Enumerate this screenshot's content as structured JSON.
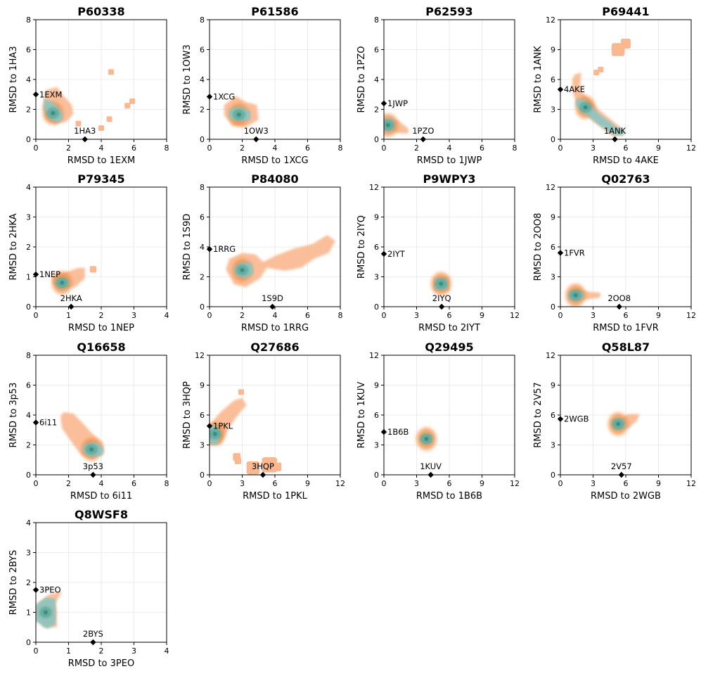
{
  "palette": {
    "orange_outer": "#f9b88f",
    "orange_mid": "#f4a26c",
    "orange_core": "#ef8a3f",
    "teal_outer": "#8ec5c0",
    "teal_mid": "#5fa99c",
    "teal_core": "#3a8f80",
    "reference_marker": "#000000",
    "grid": "#e6e6e6"
  },
  "chart_data": [
    {
      "type": "scatter",
      "title": "P60338",
      "xlabel": "RMSD to 1EXM",
      "ylabel": "RMSD to 1HA3",
      "xlim": [
        0,
        8
      ],
      "ylim": [
        0,
        8
      ],
      "ticks": [
        "0",
        "2",
        "4",
        "6",
        "8"
      ],
      "reference_points": [
        {
          "label": "1EXM",
          "x": 0.0,
          "y": 3.0
        },
        {
          "label": "1HA3",
          "x": 3.0,
          "y": 0.0
        }
      ],
      "orange_region": [
        [
          0.6,
          3.3
        ],
        [
          1.3,
          3.5
        ],
        [
          1.7,
          2.9
        ],
        [
          2.2,
          2.3
        ],
        [
          2.3,
          1.7
        ],
        [
          1.9,
          1.2
        ],
        [
          1.2,
          1.0
        ],
        [
          0.6,
          1.4
        ],
        [
          0.4,
          2.2
        ]
      ],
      "orange_blobs": [
        {
          "x": 4.6,
          "y": 4.5,
          "r": 0.15
        },
        {
          "x": 5.9,
          "y": 2.55,
          "r": 0.15
        },
        {
          "x": 5.6,
          "y": 2.25,
          "r": 0.15
        },
        {
          "x": 4.5,
          "y": 1.35,
          "r": 0.15
        },
        {
          "x": 4.0,
          "y": 0.75,
          "r": 0.15
        },
        {
          "x": 2.6,
          "y": 1.05,
          "r": 0.15
        }
      ],
      "teal_region": [
        [
          0.5,
          2.7
        ],
        [
          1.0,
          2.5
        ],
        [
          1.5,
          2.0
        ],
        [
          1.7,
          1.4
        ],
        [
          1.3,
          1.1
        ],
        [
          0.8,
          1.4
        ],
        [
          0.5,
          2.0
        ]
      ],
      "density_peak": {
        "x": 1.05,
        "y": 1.75
      }
    },
    {
      "type": "scatter",
      "title": "P61586",
      "xlabel": "RMSD to 1XCG",
      "ylabel": "RMSD to 1OW3",
      "xlim": [
        0,
        8
      ],
      "ylim": [
        0,
        8
      ],
      "ticks": [
        "0",
        "2",
        "4",
        "6",
        "8"
      ],
      "reference_points": [
        {
          "label": "1XCG",
          "x": 0.0,
          "y": 2.85
        },
        {
          "label": "1OW3",
          "x": 2.85,
          "y": 0.0
        }
      ],
      "orange_region": [
        [
          0.9,
          2.3
        ],
        [
          1.6,
          2.9
        ],
        [
          2.2,
          2.5
        ],
        [
          2.9,
          2.3
        ],
        [
          3.0,
          1.3
        ],
        [
          2.2,
          0.8
        ],
        [
          1.4,
          0.9
        ],
        [
          0.9,
          1.6
        ]
      ],
      "orange_blobs": [],
      "teal_region": [
        [
          1.2,
          2.0
        ],
        [
          1.8,
          2.2
        ],
        [
          2.5,
          1.9
        ],
        [
          2.5,
          1.3
        ],
        [
          1.8,
          1.2
        ],
        [
          1.2,
          1.4
        ]
      ],
      "density_peak": {
        "x": 1.8,
        "y": 1.65
      }
    },
    {
      "type": "scatter",
      "title": "P62593",
      "xlabel": "RMSD to 1JWP",
      "ylabel": "RMSD to 1PZO",
      "xlim": [
        0,
        8
      ],
      "ylim": [
        0,
        8
      ],
      "ticks": [
        "0",
        "2",
        "4",
        "6",
        "8"
      ],
      "reference_points": [
        {
          "label": "1JWP",
          "x": 0.0,
          "y": 2.4
        },
        {
          "label": "1PZO",
          "x": 2.4,
          "y": 0.0
        }
      ],
      "orange_region": [
        [
          0.3,
          1.3
        ],
        [
          0.8,
          1.3
        ],
        [
          1.3,
          0.9
        ],
        [
          1.5,
          0.7
        ],
        [
          1.5,
          0.4
        ],
        [
          0.8,
          0.4
        ],
        [
          0.2,
          0.7
        ]
      ],
      "orange_blobs": [],
      "teal_region": [
        [
          -0.1,
          1.3
        ],
        [
          0.5,
          1.4
        ],
        [
          0.7,
          0.8
        ],
        [
          0.3,
          0.5
        ],
        [
          -0.1,
          0.8
        ]
      ],
      "density_peak": {
        "x": 0.25,
        "y": 0.95
      }
    },
    {
      "type": "scatter",
      "title": "P69441",
      "xlabel": "RMSD to 4AKE",
      "ylabel": "RMSD to 1ANK",
      "xlim": [
        0,
        12
      ],
      "ylim": [
        0,
        12
      ],
      "ticks": [
        "0",
        "3",
        "6",
        "9",
        "12"
      ],
      "reference_points": [
        {
          "label": "4AKE",
          "x": 0.0,
          "y": 5.0
        },
        {
          "label": "1ANK",
          "x": 5.0,
          "y": 0.0
        }
      ],
      "orange_region": [
        [
          1.1,
          6.0
        ],
        [
          1.3,
          6.5
        ],
        [
          1.9,
          6.7
        ],
        [
          1.8,
          5.0
        ],
        [
          3.5,
          3.0
        ],
        [
          5.5,
          1.2
        ],
        [
          5.8,
          0.4
        ],
        [
          4.8,
          0.3
        ],
        [
          3.0,
          1.8
        ],
        [
          1.5,
          3.6
        ],
        [
          1.1,
          4.8
        ]
      ],
      "orange_blobs": [
        {
          "x": 5.3,
          "y": 9.0,
          "r": 0.6
        },
        {
          "x": 6.0,
          "y": 9.6,
          "r": 0.45
        },
        {
          "x": 3.7,
          "y": 7.0,
          "r": 0.25
        },
        {
          "x": 3.3,
          "y": 6.7,
          "r": 0.2
        }
      ],
      "teal_region": [
        [
          1.4,
          4.0
        ],
        [
          2.2,
          4.0
        ],
        [
          3.5,
          2.6
        ],
        [
          5.2,
          1.2
        ],
        [
          5.9,
          0.9
        ],
        [
          5.8,
          0.4
        ],
        [
          4.9,
          0.4
        ],
        [
          3.1,
          1.8
        ],
        [
          1.4,
          3.4
        ]
      ],
      "density_peak": {
        "x": 2.3,
        "y": 3.2
      }
    },
    {
      "type": "scatter",
      "title": "P79345",
      "xlabel": "RMSD to 1NEP",
      "ylabel": "RMSD to 2HKA",
      "xlim": [
        0,
        4
      ],
      "ylim": [
        0,
        4
      ],
      "ticks": [
        "0",
        "1",
        "2",
        "3",
        "4"
      ],
      "reference_points": [
        {
          "label": "1NEP",
          "x": 0.0,
          "y": 1.08
        },
        {
          "label": "2HKA",
          "x": 1.08,
          "y": 0.0
        }
      ],
      "orange_region": [
        [
          0.5,
          1.0
        ],
        [
          0.9,
          1.15
        ],
        [
          1.3,
          1.3
        ],
        [
          1.5,
          1.3
        ],
        [
          1.5,
          0.95
        ],
        [
          1.2,
          0.65
        ],
        [
          0.7,
          0.6
        ],
        [
          0.5,
          0.8
        ]
      ],
      "orange_blobs": [
        {
          "x": 1.75,
          "y": 1.25,
          "r": 0.1
        }
      ],
      "teal_region": [
        [
          0.6,
          0.9
        ],
        [
          0.9,
          0.95
        ],
        [
          1.05,
          0.8
        ],
        [
          0.9,
          0.65
        ],
        [
          0.65,
          0.72
        ]
      ],
      "density_peak": {
        "x": 0.8,
        "y": 0.8
      }
    },
    {
      "type": "scatter",
      "title": "P84080",
      "xlabel": "RMSD to 1RRG",
      "ylabel": "RMSD to 1S9D",
      "xlim": [
        0,
        8
      ],
      "ylim": [
        0,
        8
      ],
      "ticks": [
        "0",
        "2",
        "4",
        "6",
        "8"
      ],
      "reference_points": [
        {
          "label": "1RRG",
          "x": 0.0,
          "y": 3.85
        },
        {
          "label": "1S9D",
          "x": 3.85,
          "y": 0.0
        }
      ],
      "orange_region": [
        [
          1.0,
          2.5
        ],
        [
          1.2,
          3.2
        ],
        [
          2.0,
          3.6
        ],
        [
          2.8,
          3.5
        ],
        [
          3.3,
          3.0
        ],
        [
          4.0,
          3.4
        ],
        [
          5.2,
          3.9
        ],
        [
          6.3,
          4.2
        ],
        [
          7.2,
          4.8
        ],
        [
          7.7,
          4.4
        ],
        [
          7.3,
          3.6
        ],
        [
          6.4,
          3.2
        ],
        [
          5.6,
          2.6
        ],
        [
          4.6,
          2.4
        ],
        [
          3.5,
          2.6
        ],
        [
          3.1,
          1.9
        ],
        [
          2.2,
          1.3
        ],
        [
          1.5,
          1.5
        ]
      ],
      "orange_blobs": [],
      "teal_region": [
        [
          1.5,
          2.6
        ],
        [
          2.0,
          3.0
        ],
        [
          2.6,
          2.9
        ],
        [
          2.7,
          2.2
        ],
        [
          2.2,
          1.9
        ],
        [
          1.6,
          2.1
        ]
      ],
      "density_peak": {
        "x": 2.0,
        "y": 2.45
      }
    },
    {
      "type": "scatter",
      "title": "P9WPY3",
      "xlabel": "RMSD to 2IYT",
      "ylabel": "RMSD to 2IYQ",
      "xlim": [
        0,
        12
      ],
      "ylim": [
        0,
        12
      ],
      "ticks": [
        "0",
        "3",
        "6",
        "9",
        "12"
      ],
      "reference_points": [
        {
          "label": "2IYT",
          "x": 0.0,
          "y": 5.3
        },
        {
          "label": "2IYQ",
          "x": 5.3,
          "y": 0.0
        }
      ],
      "orange_region": [
        [
          4.6,
          2.9
        ],
        [
          5.9,
          3.0
        ],
        [
          6.0,
          1.6
        ],
        [
          4.6,
          1.6
        ]
      ],
      "orange_blobs": [],
      "teal_region": [
        [
          4.7,
          2.8
        ],
        [
          5.8,
          2.8
        ],
        [
          5.8,
          1.7
        ],
        [
          4.7,
          1.7
        ]
      ],
      "density_peak": {
        "x": 5.25,
        "y": 2.3
      }
    },
    {
      "type": "scatter",
      "title": "Q02763",
      "xlabel": "RMSD to 1FVR",
      "ylabel": "RMSD to 2OO8",
      "xlim": [
        0,
        12
      ],
      "ylim": [
        0,
        12
      ],
      "ticks": [
        "0",
        "3",
        "6",
        "9",
        "12"
      ],
      "reference_points": [
        {
          "label": "1FVR",
          "x": 0.0,
          "y": 5.4
        },
        {
          "label": "2OO8",
          "x": 5.4,
          "y": 0.0
        }
      ],
      "orange_region": [
        [
          0.8,
          1.6
        ],
        [
          1.5,
          1.8
        ],
        [
          2.6,
          1.5
        ],
        [
          3.7,
          1.4
        ],
        [
          3.6,
          0.9
        ],
        [
          2.2,
          0.7
        ],
        [
          0.8,
          0.7
        ]
      ],
      "orange_blobs": [],
      "teal_region": [
        [
          0.8,
          1.5
        ],
        [
          2.1,
          1.5
        ],
        [
          2.1,
          0.7
        ],
        [
          0.8,
          0.7
        ]
      ],
      "density_peak": {
        "x": 1.4,
        "y": 1.15
      }
    },
    {
      "type": "scatter",
      "title": "Q16658",
      "xlabel": "RMSD to 6i11",
      "ylabel": "RMSD to 3p53",
      "xlim": [
        0,
        8
      ],
      "ylim": [
        0,
        8
      ],
      "ticks": [
        "0",
        "2",
        "4",
        "6",
        "8"
      ],
      "reference_points": [
        {
          "label": "6i11",
          "x": 0.0,
          "y": 3.5
        },
        {
          "label": "3p53",
          "x": 3.5,
          "y": 0.0
        }
      ],
      "orange_region": [
        [
          1.5,
          3.9
        ],
        [
          1.7,
          4.2
        ],
        [
          2.3,
          4.1
        ],
        [
          3.0,
          3.3
        ],
        [
          3.5,
          2.7
        ],
        [
          4.1,
          2.2
        ],
        [
          4.2,
          1.5
        ],
        [
          3.5,
          1.1
        ],
        [
          2.8,
          1.3
        ],
        [
          2.3,
          2.0
        ],
        [
          1.6,
          3.1
        ]
      ],
      "orange_blobs": [],
      "teal_region": [
        [
          2.9,
          2.0
        ],
        [
          3.6,
          2.2
        ],
        [
          4.1,
          1.9
        ],
        [
          4.1,
          1.3
        ],
        [
          3.3,
          1.2
        ],
        [
          2.9,
          1.5
        ]
      ],
      "density_peak": {
        "x": 3.4,
        "y": 1.7
      }
    },
    {
      "type": "scatter",
      "title": "Q27686",
      "xlabel": "RMSD to 1PKL",
      "ylabel": "RMSD to 3HQP",
      "xlim": [
        0,
        12
      ],
      "ylim": [
        0,
        12
      ],
      "ticks": [
        "0",
        "3",
        "6",
        "9",
        "12"
      ],
      "reference_points": [
        {
          "label": "1PKL",
          "x": 0.0,
          "y": 4.9
        },
        {
          "label": "3HQP",
          "x": 4.9,
          "y": 0.0
        }
      ],
      "orange_region": [
        [
          -0.2,
          3.6
        ],
        [
          0.0,
          5.0
        ],
        [
          1.0,
          6.3
        ],
        [
          2.3,
          7.5
        ],
        [
          3.0,
          7.7
        ],
        [
          3.4,
          7.0
        ],
        [
          2.6,
          6.0
        ],
        [
          1.8,
          4.7
        ],
        [
          1.0,
          3.1
        ],
        [
          0.0,
          3.0
        ]
      ],
      "orange_blobs": [
        {
          "x": 4.0,
          "y": 0.7,
          "r": 0.6
        },
        {
          "x": 5.5,
          "y": 1.0,
          "r": 0.7
        },
        {
          "x": 6.2,
          "y": 0.8,
          "r": 0.4
        },
        {
          "x": 2.5,
          "y": 1.8,
          "r": 0.35
        },
        {
          "x": 2.6,
          "y": 1.4,
          "r": 0.3
        },
        {
          "x": 2.9,
          "y": 8.3,
          "r": 0.25
        }
      ],
      "teal_region": [
        [
          -0.1,
          3.5
        ],
        [
          0.0,
          5.0
        ],
        [
          0.6,
          5.0
        ],
        [
          1.0,
          4.2
        ],
        [
          0.8,
          3.1
        ],
        [
          0.2,
          3.0
        ]
      ],
      "density_peak": {
        "x": 0.5,
        "y": 4.1
      }
    },
    {
      "type": "scatter",
      "title": "Q29495",
      "xlabel": "RMSD to 1B6B",
      "ylabel": "RMSD to 1KUV",
      "xlim": [
        0,
        12
      ],
      "ylim": [
        0,
        12
      ],
      "ticks": [
        "0",
        "3",
        "6",
        "9",
        "12"
      ],
      "reference_points": [
        {
          "label": "1B6B",
          "x": 0.0,
          "y": 4.3
        },
        {
          "label": "1KUV",
          "x": 4.3,
          "y": 0.0
        }
      ],
      "orange_region": [
        [
          3.5,
          3.9
        ],
        [
          4.2,
          3.9
        ],
        [
          4.3,
          3.3
        ],
        [
          3.6,
          3.3
        ]
      ],
      "orange_blobs": [],
      "teal_region": [
        [
          3.5,
          3.9
        ],
        [
          4.2,
          3.9
        ],
        [
          4.3,
          3.3
        ],
        [
          3.6,
          3.3
        ]
      ],
      "density_peak": {
        "x": 3.9,
        "y": 3.6
      }
    },
    {
      "type": "scatter",
      "title": "Q58L87",
      "xlabel": "RMSD to 2WGB",
      "ylabel": "RMSD to 2V57",
      "xlim": [
        0,
        12
      ],
      "ylim": [
        0,
        12
      ],
      "ticks": [
        "0",
        "3",
        "6",
        "9",
        "12"
      ],
      "reference_points": [
        {
          "label": "2WGB",
          "x": 0.0,
          "y": 5.6
        },
        {
          "label": "2V57",
          "x": 5.6,
          "y": 0.0
        }
      ],
      "orange_region": [
        [
          4.8,
          5.5
        ],
        [
          5.5,
          5.6
        ],
        [
          6.2,
          6.1
        ],
        [
          7.3,
          6.1
        ],
        [
          7.0,
          5.4
        ],
        [
          6.3,
          4.7
        ],
        [
          5.2,
          4.5
        ],
        [
          4.8,
          4.8
        ]
      ],
      "orange_blobs": [],
      "teal_region": [
        [
          4.8,
          5.5
        ],
        [
          5.8,
          5.6
        ],
        [
          6.0,
          4.7
        ],
        [
          5.0,
          4.6
        ]
      ],
      "density_peak": {
        "x": 5.3,
        "y": 5.1
      }
    },
    {
      "type": "scatter",
      "title": "Q8WSF8",
      "xlabel": "RMSD to 3PEO",
      "ylabel": "RMSD to 2BYS",
      "xlim": [
        0,
        4
      ],
      "ylim": [
        0,
        4
      ],
      "ticks": [
        "0",
        "1",
        "2",
        "3",
        "4"
      ],
      "reference_points": [
        {
          "label": "3PEO",
          "x": 0.0,
          "y": 1.75
        },
        {
          "label": "2BYS",
          "x": 1.75,
          "y": 0.0
        }
      ],
      "orange_region": [
        [
          0.1,
          1.3
        ],
        [
          0.4,
          1.6
        ],
        [
          0.8,
          1.7
        ],
        [
          0.6,
          1.3
        ],
        [
          0.65,
          0.5
        ],
        [
          0.2,
          0.5
        ]
      ],
      "orange_blobs": [],
      "teal_region": [
        [
          0.0,
          0.7
        ],
        [
          0.0,
          1.25
        ],
        [
          0.3,
          1.5
        ],
        [
          0.6,
          1.45
        ],
        [
          0.6,
          0.6
        ],
        [
          0.35,
          0.45
        ]
      ],
      "density_peak": {
        "x": 0.3,
        "y": 1.0
      }
    }
  ]
}
